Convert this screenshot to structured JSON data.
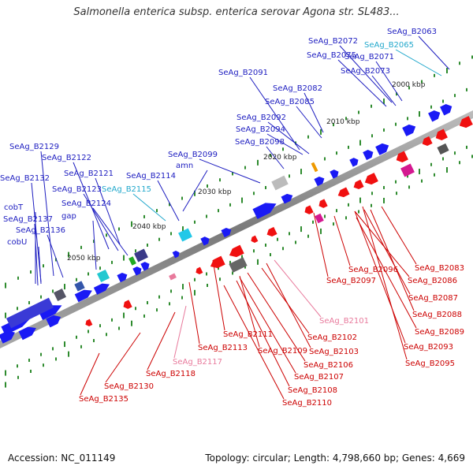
{
  "title": "Salmonella enterica subsp. enterica serovar Agona str. SL483...",
  "footer": {
    "accession": "Accession: NC_011149",
    "summary": "Topology: circular; Length: 4,798,660 bp; Genes: 4,669"
  },
  "colors": {
    "forward_gene": "#1a1af5",
    "reverse_gene": "#f01010",
    "forward_label": "#1d1dc0",
    "reverse_label": "#cc0000",
    "rna_forward_label": "#22a8cc",
    "rna_reverse_label": "#e87a9c",
    "backbone": "#8a8a8a",
    "tick": "#2e8b2e"
  },
  "scale_labels": [
    "2000 kbp",
    "2010 kbp",
    "2020 kbp",
    "2030 kbp",
    "2040 kbp",
    "2050 kbp"
  ],
  "upper_labels": [
    {
      "text": "SeAg_B2063",
      "kind": "forward"
    },
    {
      "text": "SeAg_B2072",
      "kind": "forward"
    },
    {
      "text": "SeAg_B2065",
      "kind": "rna"
    },
    {
      "text": "SeAg_B2075",
      "kind": "forward"
    },
    {
      "text": "SeAg_B2071",
      "kind": "forward"
    },
    {
      "text": "SeAg_B2073",
      "kind": "forward"
    },
    {
      "text": "SeAg_B2091",
      "kind": "forward"
    },
    {
      "text": "SeAg_B2082",
      "kind": "forward"
    },
    {
      "text": "SeAg_B2085",
      "kind": "forward"
    },
    {
      "text": "SeAg_B2092",
      "kind": "forward"
    },
    {
      "text": "SeAg_B2094",
      "kind": "forward"
    },
    {
      "text": "SeAg_B2098",
      "kind": "forward"
    },
    {
      "text": "SeAg_B2099",
      "kind": "forward"
    },
    {
      "text": "amn",
      "kind": "forward"
    },
    {
      "text": "SeAg_B2114",
      "kind": "forward"
    },
    {
      "text": "SeAg_B2129",
      "kind": "forward"
    },
    {
      "text": "SeAg_B2122",
      "kind": "forward"
    },
    {
      "text": "SeAg_B2121",
      "kind": "forward"
    },
    {
      "text": "SeAg_B2132",
      "kind": "forward"
    },
    {
      "text": "SeAg_B2123",
      "kind": "forward"
    },
    {
      "text": "SeAg_B2115",
      "kind": "rna"
    },
    {
      "text": "SeAg_B2124",
      "kind": "forward"
    },
    {
      "text": "cobT",
      "kind": "forward"
    },
    {
      "text": "gap",
      "kind": "forward"
    },
    {
      "text": "SeAg_B2137",
      "kind": "forward"
    },
    {
      "text": "SeAg_B2136",
      "kind": "forward"
    },
    {
      "text": "cobU",
      "kind": "forward"
    }
  ],
  "lower_labels": [
    {
      "text": "SeAg_B2083",
      "kind": "reverse"
    },
    {
      "text": "SeAg_B2096",
      "kind": "reverse"
    },
    {
      "text": "SeAg_B2086",
      "kind": "reverse"
    },
    {
      "text": "SeAg_B2097",
      "kind": "reverse"
    },
    {
      "text": "SeAg_B2087",
      "kind": "reverse"
    },
    {
      "text": "SeAg_B2088",
      "kind": "reverse"
    },
    {
      "text": "SeAg_B2101",
      "kind": "rna"
    },
    {
      "text": "SeAg_B2089",
      "kind": "reverse"
    },
    {
      "text": "SeAg_B2111",
      "kind": "reverse"
    },
    {
      "text": "SeAg_B2102",
      "kind": "reverse"
    },
    {
      "text": "SeAg_B2093",
      "kind": "reverse"
    },
    {
      "text": "SeAg_B2113",
      "kind": "reverse"
    },
    {
      "text": "SeAg_B2109",
      "kind": "reverse"
    },
    {
      "text": "SeAg_B2103",
      "kind": "reverse"
    },
    {
      "text": "SeAg_B2117",
      "kind": "rna"
    },
    {
      "text": "SeAg_B2095",
      "kind": "reverse"
    },
    {
      "text": "SeAg_B2106",
      "kind": "reverse"
    },
    {
      "text": "SeAg_B2118",
      "kind": "reverse"
    },
    {
      "text": "SeAg_B2107",
      "kind": "reverse"
    },
    {
      "text": "SeAg_B2130",
      "kind": "reverse"
    },
    {
      "text": "SeAg_B2108",
      "kind": "reverse"
    },
    {
      "text": "SeAg_B2135",
      "kind": "reverse"
    },
    {
      "text": "SeAg_B2110",
      "kind": "reverse"
    }
  ]
}
